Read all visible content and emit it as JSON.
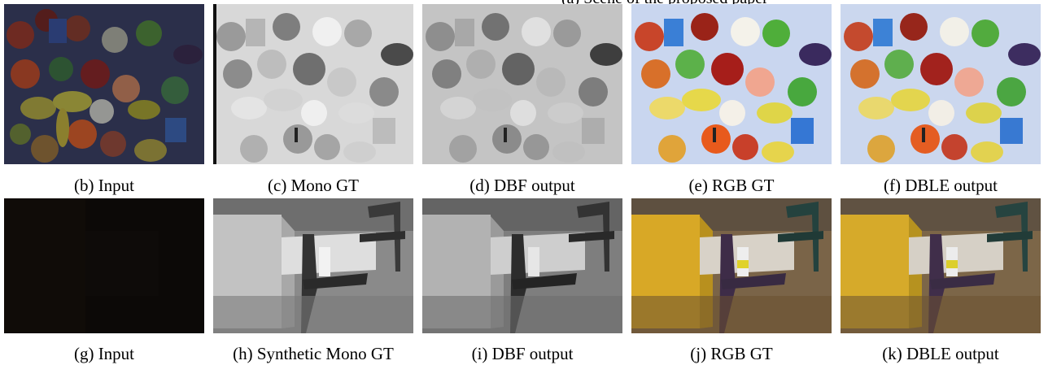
{
  "top_caption_fragment": "(a) Scene of the proposed paper",
  "rows": [
    {
      "scene": "fruits",
      "panels": [
        {
          "caption": "(b) Input"
        },
        {
          "caption": "(c) Mono GT"
        },
        {
          "caption": "(d) DBF output"
        },
        {
          "caption": "(e) RGB GT"
        },
        {
          "caption": "(f) DBLE output"
        }
      ]
    },
    {
      "scene": "chairs",
      "panels": [
        {
          "caption": "(g) Input"
        },
        {
          "caption": "(h) Synthetic Mono GT"
        },
        {
          "caption": "(i) DBF output"
        },
        {
          "caption": "(j) RGB GT"
        },
        {
          "caption": "(k) DBLE output"
        }
      ]
    }
  ]
}
